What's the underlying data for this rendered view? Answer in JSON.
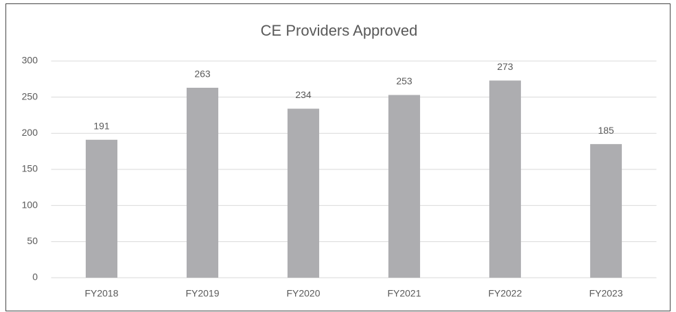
{
  "chart_data": {
    "type": "bar",
    "title": "CE Providers Approved",
    "categories": [
      "FY2018",
      "FY2019",
      "FY2020",
      "FY2021",
      "FY2022",
      "FY2023"
    ],
    "values": [
      191,
      263,
      234,
      253,
      273,
      185
    ],
    "color": "#adadb0",
    "ylim": [
      0,
      300
    ],
    "yticks": [
      0,
      50,
      100,
      150,
      200,
      250,
      300
    ],
    "grid": true,
    "data_labels": true
  }
}
